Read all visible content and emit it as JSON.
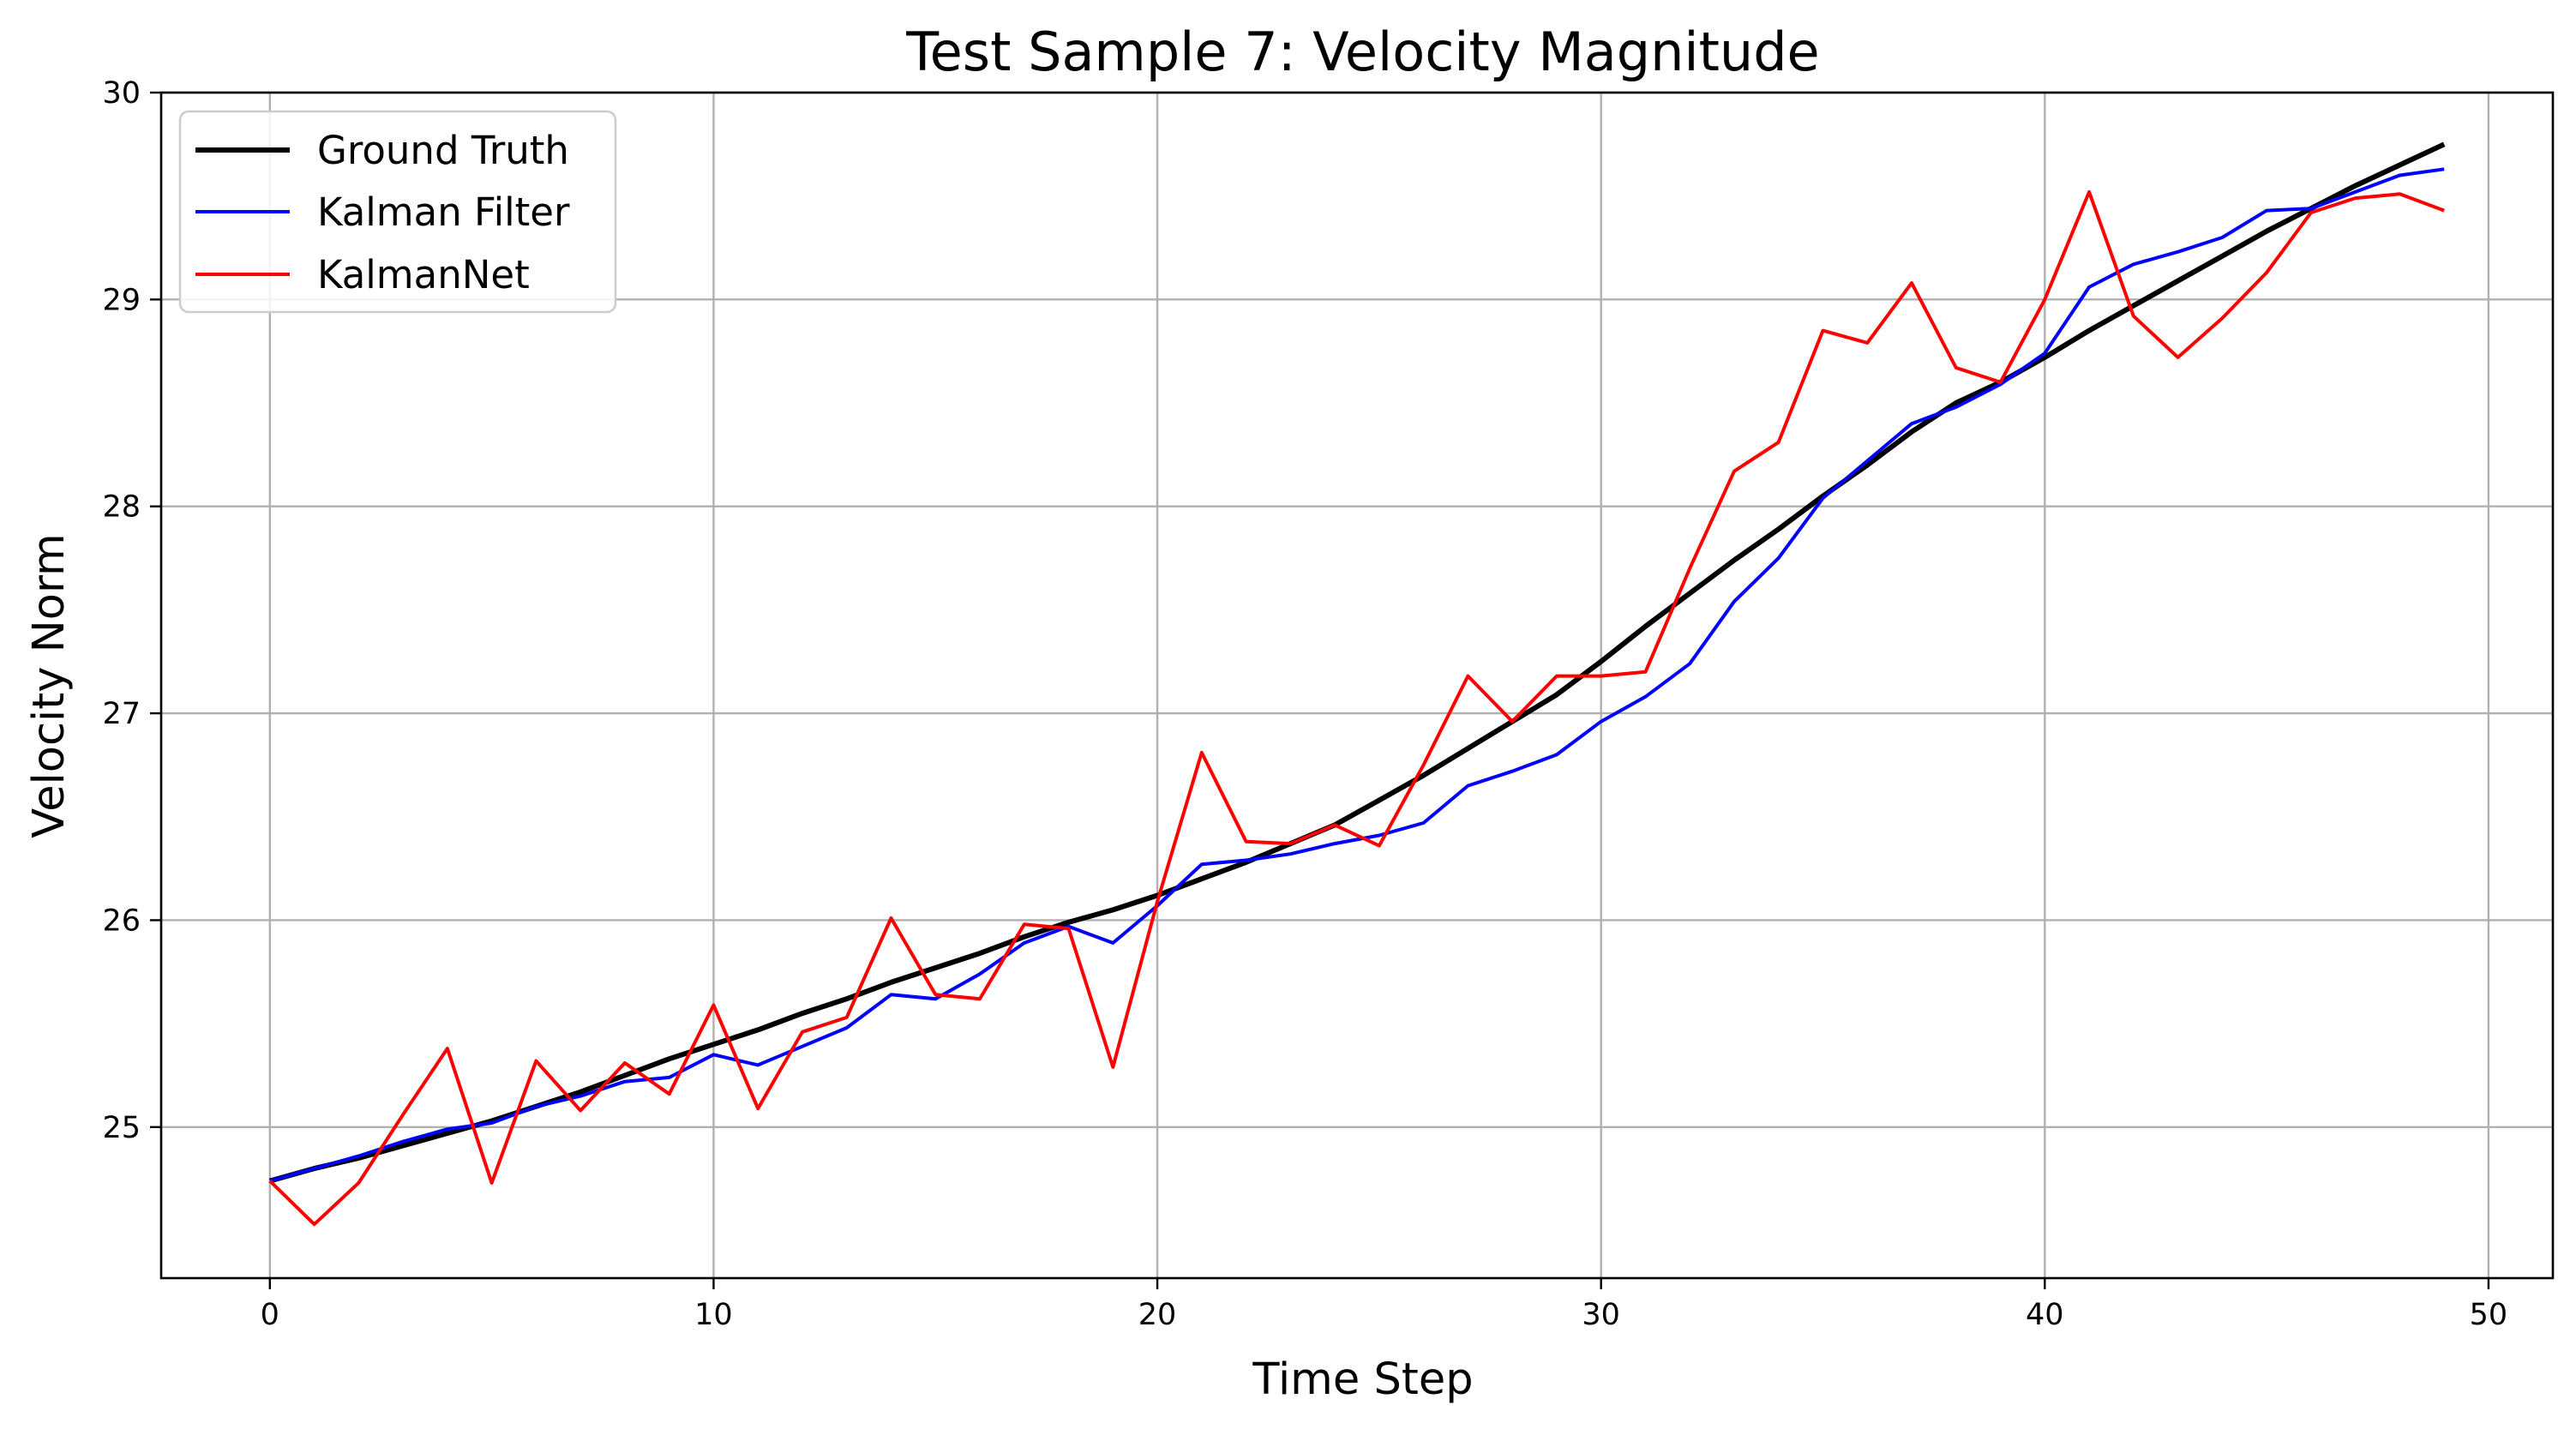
{
  "chart_data": {
    "type": "line",
    "title": "Test Sample 7: Velocity Magnitude",
    "xlabel": "Time Step",
    "ylabel": "Velocity Norm",
    "xlim": [
      -2.45,
      51.45
    ],
    "ylim": [
      24.27,
      30.0
    ],
    "xticks": [
      0,
      10,
      20,
      30,
      40,
      50
    ],
    "yticks": [
      25,
      26,
      27,
      28,
      29,
      30
    ],
    "grid": true,
    "legend_position": "top-left",
    "x": [
      0,
      1,
      2,
      3,
      4,
      5,
      6,
      7,
      8,
      9,
      10,
      11,
      12,
      13,
      14,
      15,
      16,
      17,
      18,
      19,
      20,
      21,
      22,
      23,
      24,
      25,
      26,
      27,
      28,
      29,
      30,
      31,
      32,
      33,
      34,
      35,
      36,
      37,
      38,
      39,
      40,
      41,
      42,
      43,
      44,
      45,
      46,
      47,
      48,
      49
    ],
    "series": [
      {
        "name": "Ground Truth",
        "color": "#000000",
        "values": [
          24.74,
          24.8,
          24.85,
          24.91,
          24.97,
          25.03,
          25.1,
          25.17,
          25.25,
          25.33,
          25.4,
          25.47,
          25.55,
          25.62,
          25.7,
          25.77,
          25.84,
          25.92,
          25.99,
          26.05,
          26.12,
          26.2,
          26.28,
          26.37,
          26.46,
          26.58,
          26.7,
          26.83,
          26.96,
          27.09,
          27.25,
          27.42,
          27.58,
          27.74,
          27.89,
          28.05,
          28.2,
          28.36,
          28.5,
          28.6,
          28.72,
          28.85,
          28.97,
          29.09,
          29.21,
          29.33,
          29.44,
          29.55,
          29.65,
          29.75
        ]
      },
      {
        "name": "Kalman Filter",
        "color": "#0000ff",
        "values": [
          24.74,
          24.8,
          24.86,
          24.93,
          24.99,
          25.02,
          25.1,
          25.15,
          25.22,
          25.24,
          25.35,
          25.3,
          25.39,
          25.48,
          25.64,
          25.62,
          25.74,
          25.89,
          25.97,
          25.89,
          26.07,
          26.27,
          26.29,
          26.32,
          26.37,
          26.41,
          26.47,
          26.65,
          26.72,
          26.8,
          26.96,
          27.08,
          27.24,
          27.54,
          27.75,
          28.04,
          28.22,
          28.4,
          28.48,
          28.59,
          28.74,
          29.06,
          29.17,
          29.23,
          29.3,
          29.43,
          29.44,
          29.52,
          29.6,
          29.63
        ]
      },
      {
        "name": "KalmanNet",
        "color": "#ff0000",
        "values": [
          24.74,
          24.53,
          24.73,
          25.06,
          25.38,
          24.73,
          25.32,
          25.08,
          25.31,
          25.16,
          25.59,
          25.09,
          25.46,
          25.53,
          26.01,
          25.64,
          25.62,
          25.98,
          25.96,
          25.29,
          26.09,
          26.81,
          26.38,
          26.37,
          26.46,
          26.36,
          26.75,
          27.18,
          26.96,
          27.18,
          27.18,
          27.2,
          27.7,
          28.17,
          28.31,
          28.85,
          28.79,
          29.08,
          28.67,
          28.6,
          29.0,
          29.52,
          28.92,
          28.72,
          28.91,
          29.13,
          29.42,
          29.49,
          29.51,
          29.43
        ]
      }
    ]
  }
}
